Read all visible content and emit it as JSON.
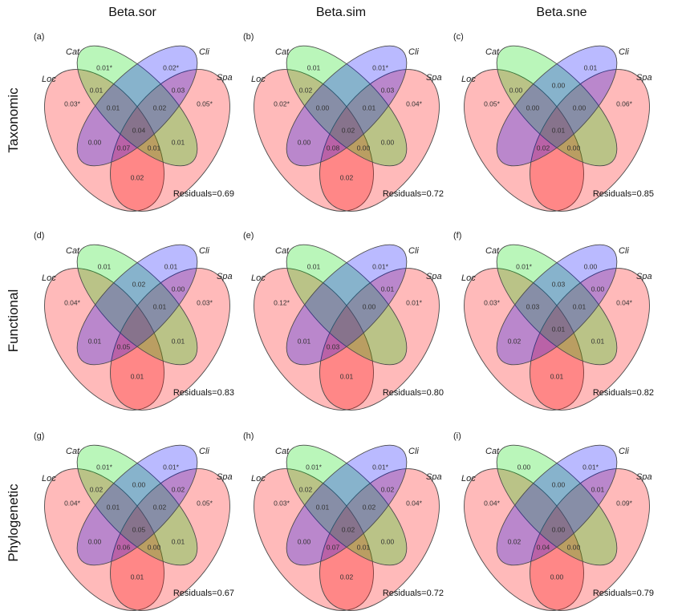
{
  "column_headers": [
    "Beta.sor",
    "Beta.sim",
    "Beta.sne"
  ],
  "row_labels": [
    "Taxonomic",
    "Functional",
    "Phylogenetic"
  ],
  "set_names": {
    "Loc": "Loc",
    "Cat": "Cat",
    "Cli": "Cli",
    "Spa": "Spa"
  },
  "colors": {
    "Loc": "#ff0000",
    "Spa": "#ff0000",
    "Cat": "#00dd00",
    "Cli": "#0000ff"
  },
  "panels": [
    {
      "label": "(a)",
      "residuals": "Residuals=0.69",
      "regions": {
        "Cat": "0.01*",
        "Cli": "0.02*",
        "Loc": "0.03*",
        "Spa": "0.05*",
        "LocCat": "0.01",
        "CliSpa": "0.03",
        "CatCli": "",
        "LocCatCli": "0.01",
        "CatCliSpa": "0.02",
        "All": "0.04",
        "LocCli": "0.00",
        "CatSpa": "0.01",
        "LocCliSpa": "0.07",
        "LocCatSpa": "0.01",
        "LocSpa": "0.02"
      }
    },
    {
      "label": "(b)",
      "residuals": "Residuals=0.72",
      "regions": {
        "Cat": "0.01",
        "Cli": "0.01*",
        "Loc": "0.02*",
        "Spa": "0.04*",
        "LocCat": "0.02",
        "CliSpa": "0.03",
        "CatCli": "",
        "LocCatCli": "0.00",
        "CatCliSpa": "0.01",
        "All": "0.02",
        "LocCli": "0.00",
        "CatSpa": "0.00",
        "LocCliSpa": "0.08",
        "LocCatSpa": "0.00",
        "LocSpa": "0.02"
      }
    },
    {
      "label": "(c)",
      "residuals": "Residuals=0.85",
      "regions": {
        "Cat": "",
        "Cli": "0.01",
        "Loc": "0.05*",
        "Spa": "0.06*",
        "LocCat": "0.00",
        "CliSpa": "",
        "CatCli": "0.00",
        "LocCatCli": "0.00",
        "CatCliSpa": "0.00",
        "All": "0.01",
        "LocCli": "",
        "CatSpa": "",
        "LocCliSpa": "0.02",
        "LocCatSpa": "0.00",
        "LocSpa": ""
      }
    },
    {
      "label": "(d)",
      "residuals": "Residuals=0.83",
      "regions": {
        "Cat": "0.01",
        "Cli": "0.01",
        "Loc": "0.04*",
        "Spa": "0.03*",
        "LocCat": "",
        "CliSpa": "0.00",
        "CatCli": "0.02",
        "LocCatCli": "",
        "CatCliSpa": "0.01",
        "All": "",
        "LocCli": "0.01",
        "CatSpa": "0.01",
        "LocCliSpa": "0.05",
        "LocCatSpa": "",
        "LocSpa": "0.01"
      }
    },
    {
      "label": "(e)",
      "residuals": "Residuals=0.80",
      "regions": {
        "Cat": "0.01",
        "Cli": "0.01*",
        "Loc": "0.12*",
        "Spa": "0.01*",
        "LocCat": "",
        "CliSpa": "0.01",
        "CatCli": "",
        "LocCatCli": "",
        "CatCliSpa": "0.00",
        "All": "",
        "LocCli": "0.01",
        "CatSpa": "",
        "LocCliSpa": "0.03",
        "LocCatSpa": "",
        "LocSpa": "0.01"
      }
    },
    {
      "label": "(f)",
      "residuals": "Residuals=0.82",
      "regions": {
        "Cat": "0.01*",
        "Cli": "0.00",
        "Loc": "0.03*",
        "Spa": "0.04*",
        "LocCat": "",
        "CliSpa": "0.00",
        "CatCli": "0.03",
        "LocCatCli": "0.03",
        "CatCliSpa": "0.01",
        "All": "0.01",
        "LocCli": "0.02",
        "CatSpa": "0.01",
        "LocCliSpa": "",
        "LocCatSpa": "",
        "LocSpa": "0.01"
      }
    },
    {
      "label": "(g)",
      "residuals": "Residuals=0.67",
      "regions": {
        "Cat": "0.01*",
        "Cli": "0.01*",
        "Loc": "0.04*",
        "Spa": "0.05*",
        "LocCat": "0.02",
        "CliSpa": "0.02",
        "CatCli": "0.00",
        "LocCatCli": "0.01",
        "CatCliSpa": "0.02",
        "All": "0.05",
        "LocCli": "0.00",
        "CatSpa": "0.01",
        "LocCliSpa": "0.06",
        "LocCatSpa": "0.00",
        "LocSpa": "0.01"
      }
    },
    {
      "label": "(h)",
      "residuals": "Residuals=0.72",
      "regions": {
        "Cat": "0.01*",
        "Cli": "0.01*",
        "Loc": "0.03*",
        "Spa": "0.04*",
        "LocCat": "0.02",
        "CliSpa": "0.02",
        "CatCli": "",
        "LocCatCli": "0.01",
        "CatCliSpa": "0.02",
        "All": "0.02",
        "LocCli": "0.00",
        "CatSpa": "0.00",
        "LocCliSpa": "0.07",
        "LocCatSpa": "0.01",
        "LocSpa": "0.02"
      }
    },
    {
      "label": "(i)",
      "residuals": "Residuals=0.79",
      "regions": {
        "Cat": "0.00",
        "Cli": "0.01*",
        "Loc": "0.04*",
        "Spa": "0.09*",
        "LocCat": "",
        "CliSpa": "0.01",
        "CatCli": "0.00",
        "LocCatCli": "",
        "CatCliSpa": "",
        "All": "0.00",
        "LocCli": "0.02",
        "CatSpa": "",
        "LocCliSpa": "0.04",
        "LocCatSpa": "0.00",
        "LocSpa": "0.00"
      }
    }
  ]
}
